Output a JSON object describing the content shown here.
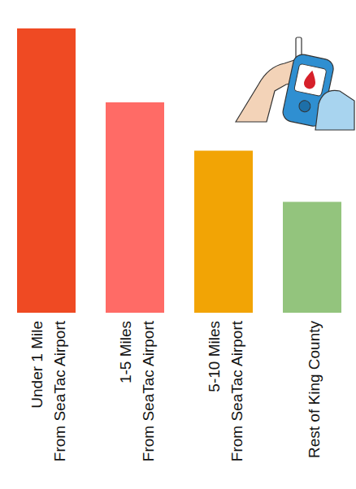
{
  "chart_data": {
    "type": "bar",
    "categories": [
      "Under 1 Mile\nFrom SeaTac Airport",
      "1-5 Miles\nFrom SeaTac Airport",
      "5-10 Miles\nFrom SeaTac Airport",
      "Rest of King County"
    ],
    "values": [
      100,
      74,
      57,
      39
    ],
    "colors": [
      "#ef4a23",
      "#ff6b66",
      "#f2a405",
      "#93c47d"
    ],
    "tick_labels": "x"
  }
}
